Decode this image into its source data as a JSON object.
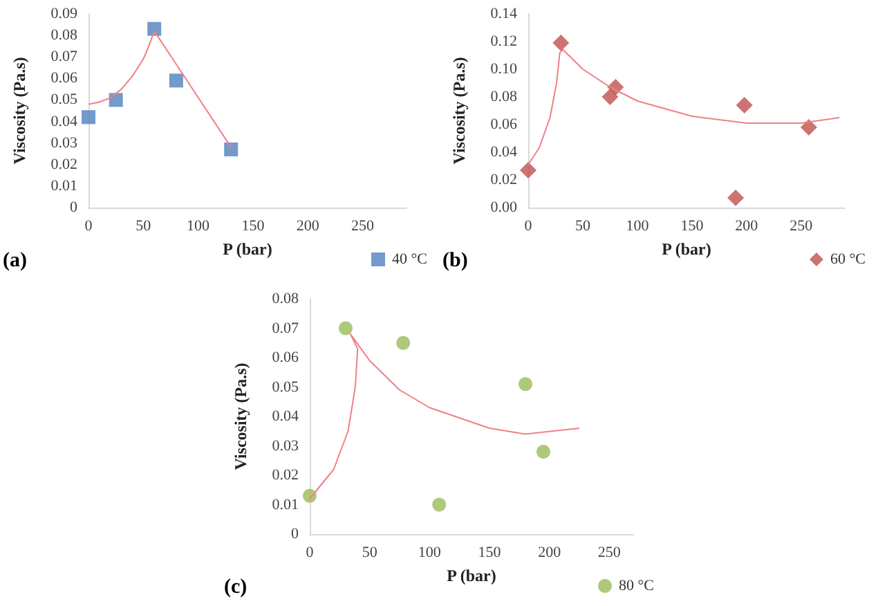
{
  "chart_data": [
    {
      "type": "scatter",
      "xlabel": "P (bar)",
      "ylabel": "Viscosity (Pa.s)",
      "xlim": [
        0,
        290
      ],
      "xticks": [
        0,
        50,
        100,
        150,
        200,
        250
      ],
      "ylim": [
        0,
        0.09
      ],
      "yticks": [
        0,
        0.01,
        0.02,
        0.03,
        0.04,
        0.05,
        0.06,
        0.07,
        0.08,
        0.09
      ],
      "legend": "bottom right",
      "grid": false,
      "annotations": [
        "(a)"
      ],
      "series": [
        {
          "name": "40 °C",
          "color": "#4f81bd",
          "marker": "square",
          "x": [
            0,
            25,
            60,
            80,
            130
          ],
          "values": [
            0.042,
            0.05,
            0.083,
            0.059,
            0.027
          ]
        },
        {
          "type": "line",
          "color": "#f07f86",
          "marker": "none",
          "x": [
            0,
            10,
            20,
            30,
            40,
            50,
            55,
            60,
            130
          ],
          "values": [
            0.048,
            0.049,
            0.051,
            0.055,
            0.061,
            0.069,
            0.075,
            0.082,
            0.028
          ]
        }
      ]
    },
    {
      "type": "scatter",
      "xlabel": "P (bar)",
      "ylabel": "Viscosity (Pa.s)",
      "xlim": [
        0,
        290
      ],
      "xticks": [
        0,
        50,
        100,
        150,
        200,
        250
      ],
      "ylim": [
        0,
        0.14
      ],
      "yticks": [
        {
          "value": 0,
          "label": "0.00"
        },
        {
          "value": 0.02,
          "label": "0.02"
        },
        {
          "value": 0.04,
          "label": "0.04"
        },
        {
          "value": 0.06,
          "label": "0.06"
        },
        {
          "value": 0.08,
          "label": "0.08"
        },
        {
          "value": 0.1,
          "label": "0.10"
        },
        {
          "value": 0.12,
          "label": "0.12"
        },
        {
          "value": 0.14,
          "label": "0.14"
        }
      ],
      "legend": "bottom right",
      "grid": false,
      "annotations": [
        "(b)"
      ],
      "series": [
        {
          "name": "60 °C",
          "color": "#c0504d",
          "marker": "diamond",
          "x": [
            0,
            30,
            75,
            80,
            190,
            198,
            257
          ],
          "values": [
            0.027,
            0.119,
            0.08,
            0.087,
            0.007,
            0.074,
            0.058
          ]
        },
        {
          "type": "line",
          "color": "#f07f86",
          "marker": "none",
          "x": [
            0,
            10,
            20,
            26,
            29,
            32,
            50,
            75,
            100,
            150,
            200,
            250,
            285
          ],
          "values": [
            0.031,
            0.043,
            0.065,
            0.09,
            0.112,
            0.114,
            0.1,
            0.087,
            0.077,
            0.066,
            0.061,
            0.061,
            0.065
          ]
        }
      ]
    },
    {
      "type": "scatter",
      "xlabel": "P (bar)",
      "ylabel": "Viscosity (Pa.s)",
      "xlim": [
        0,
        270
      ],
      "xticks": [
        0,
        50,
        100,
        150,
        200,
        250
      ],
      "ylim": [
        0,
        0.08
      ],
      "yticks": [
        0,
        0.01,
        0.02,
        0.03,
        0.04,
        0.05,
        0.06,
        0.07,
        0.08
      ],
      "legend": "bottom right",
      "grid": false,
      "annotations": [
        "(c)"
      ],
      "series": [
        {
          "name": "80 °C",
          "color": "#9bbb59",
          "marker": "circle",
          "x": [
            0,
            30,
            78,
            108,
            180,
            195
          ],
          "values": [
            0.013,
            0.07,
            0.065,
            0.01,
            0.051,
            0.028
          ]
        },
        {
          "type": "line",
          "color": "#f07f86",
          "marker": "none",
          "x": [
            0,
            20,
            32,
            38,
            40,
            34,
            50,
            75,
            100,
            150,
            180,
            225
          ],
          "values": [
            0.012,
            0.022,
            0.035,
            0.05,
            0.063,
            0.068,
            0.059,
            0.049,
            0.043,
            0.036,
            0.034,
            0.036
          ]
        }
      ]
    }
  ]
}
